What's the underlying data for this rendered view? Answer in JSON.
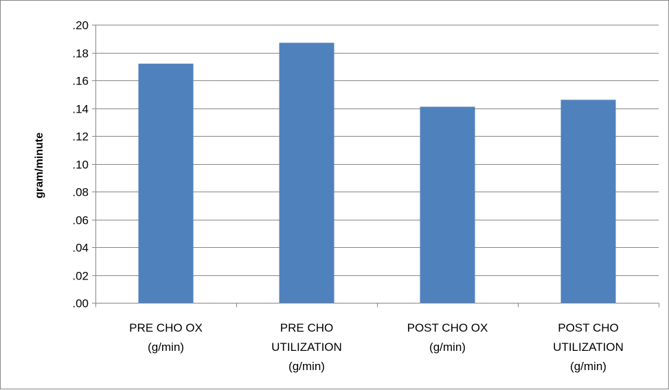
{
  "chart_data": {
    "type": "bar",
    "title": "",
    "xlabel": "",
    "ylabel": "gram/minute",
    "ylim": [
      0,
      0.2
    ],
    "yticks": [
      ".00",
      ".02",
      ".04",
      ".06",
      ".08",
      ".10",
      ".12",
      ".14",
      ".16",
      ".18",
      ".20"
    ],
    "grid": true,
    "legend": "none",
    "categories": [
      [
        "PRE CHO OX",
        "(g/min)"
      ],
      [
        "PRE CHO",
        "UTILIZATION",
        "(g/min)"
      ],
      [
        "POST CHO OX",
        "(g/min)"
      ],
      [
        "POST CHO",
        "UTILIZATION",
        "(g/min)"
      ]
    ],
    "values": [
      0.172,
      0.187,
      0.141,
      0.146
    ],
    "bar_color": "#4f81bd",
    "grid_color": "#868686"
  }
}
